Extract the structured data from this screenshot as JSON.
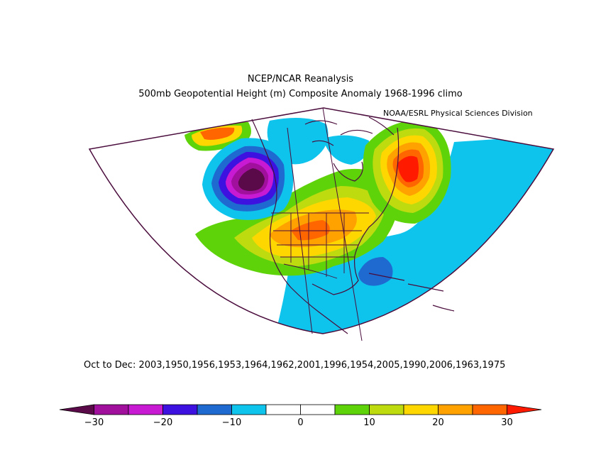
{
  "title": "NCEP/NCAR Reanalysis",
  "subtitle": "500mb Geopotential Height (m) Composite Anomaly 1968-1996 climo",
  "credit": "NOAA/ESRL Physical Sciences Division",
  "caption": "Oct to Dec: 2003,1950,1956,1953,1964,1962,2001,1996,1954,2005,1990,2006,1963,1975",
  "colorbar": {
    "bins": [
      {
        "from": -35,
        "to": -30,
        "color": "#5a0a48"
      },
      {
        "from": -30,
        "to": -25,
        "color": "#a0109c"
      },
      {
        "from": -25,
        "to": -20,
        "color": "#c81ad2"
      },
      {
        "from": -20,
        "to": -15,
        "color": "#3d12e0"
      },
      {
        "from": -15,
        "to": -10,
        "color": "#1e6ad0"
      },
      {
        "from": -10,
        "to": -5,
        "color": "#0fc4ec"
      },
      {
        "from": -5,
        "to": 0,
        "color": "#ffffff"
      },
      {
        "from": 0,
        "to": 5,
        "color": "#ffffff"
      },
      {
        "from": 5,
        "to": 10,
        "color": "#5fd30a"
      },
      {
        "from": 10,
        "to": 15,
        "color": "#bedb10"
      },
      {
        "from": 15,
        "to": 20,
        "color": "#ffd700"
      },
      {
        "from": 20,
        "to": 25,
        "color": "#ffa200"
      },
      {
        "from": 25,
        "to": 30,
        "color": "#ff6600"
      },
      {
        "from": 30,
        "to": 35,
        "color": "#ff1a00"
      }
    ],
    "ticks": [
      {
        "value": -30,
        "label": "−30"
      },
      {
        "value": -20,
        "label": "−20"
      },
      {
        "value": -10,
        "label": "−10"
      },
      {
        "value": 0,
        "label": "0"
      },
      {
        "value": 10,
        "label": "10"
      },
      {
        "value": 20,
        "label": "20"
      },
      {
        "value": 30,
        "label": "30"
      }
    ],
    "range": [
      -35,
      35
    ]
  },
  "map": {
    "anomaly_centers": [
      {
        "region": "northeast-pacific",
        "peak": -35
      },
      {
        "region": "labrador-sea",
        "peak": 30
      },
      {
        "region": "central-united-states",
        "peak": 25
      },
      {
        "region": "bahamas",
        "peak": -15
      }
    ]
  }
}
